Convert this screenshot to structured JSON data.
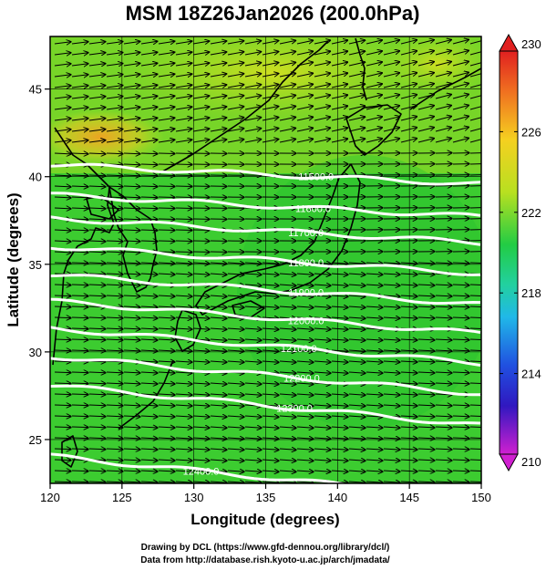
{
  "title": "MSM 18Z26Jan2026 (200.0hPa)",
  "xlabel": "Longitude (degrees)",
  "ylabel": "Latitude  (degrees)",
  "credits": [
    "Drawing by DCL (https://www.gfd-dennou.org/library/dcl/)",
    "Data from http://database.rish.kyoto-u.ac.jp/arch/jmadata/"
  ],
  "map": {
    "lon_range": [
      120,
      150
    ],
    "lat_range": [
      22.5,
      48
    ],
    "x_ticks": [
      {
        "value": 120,
        "label": "120"
      },
      {
        "value": 125,
        "label": "125"
      },
      {
        "value": 130,
        "label": "130"
      },
      {
        "value": 135,
        "label": "135"
      },
      {
        "value": 140,
        "label": "140"
      },
      {
        "value": 145,
        "label": "145"
      },
      {
        "value": 150,
        "label": "150"
      }
    ],
    "y_ticks": [
      {
        "value": 25,
        "label": "25"
      },
      {
        "value": 30,
        "label": "30"
      },
      {
        "value": 35,
        "label": "35"
      },
      {
        "value": 40,
        "label": "40"
      },
      {
        "value": 45,
        "label": "45"
      }
    ],
    "field": "temperature",
    "vectors": "wind (eastward)",
    "grid": true
  },
  "colorbar": {
    "min": 210,
    "max": 230,
    "labels": [
      "230",
      "226",
      "222",
      "218",
      "214",
      "210"
    ],
    "label_values": [
      230,
      226,
      222,
      218,
      214,
      210
    ]
  },
  "contours": [
    {
      "label": "11500.0",
      "lon": 138.5,
      "lat": 40.0
    },
    {
      "label": "11600.0",
      "lon": 138.3,
      "lat": 38.2
    },
    {
      "label": "11700.0",
      "lon": 137.8,
      "lat": 36.8
    },
    {
      "label": "11800.0",
      "lon": 137.8,
      "lat": 35.1
    },
    {
      "label": "11900.0",
      "lon": 137.8,
      "lat": 33.4
    },
    {
      "label": "12000.0",
      "lon": 137.8,
      "lat": 31.8
    },
    {
      "label": "12100.0",
      "lon": 137.3,
      "lat": 30.2
    },
    {
      "label": "12200.0",
      "lon": 137.5,
      "lat": 28.5
    },
    {
      "label": "12300.0",
      "lon": 137.0,
      "lat": 26.8
    },
    {
      "label": "12400.0",
      "lon": 130.5,
      "lat": 23.2
    }
  ],
  "colors": {
    "field_main": "#33cc33",
    "field_warm": "#f2b722",
    "vectors": "#000000",
    "contours": "#ffffff",
    "coastline": "#000000"
  }
}
